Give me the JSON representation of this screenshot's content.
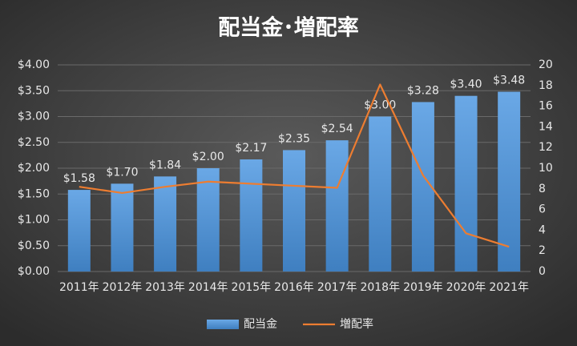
{
  "chart_data": {
    "type": "bar",
    "title": "配当金･増配率",
    "categories": [
      "2011年",
      "2012年",
      "2013年",
      "2014年",
      "2015年",
      "2016年",
      "2017年",
      "2018年",
      "2019年",
      "2020年",
      "2021年"
    ],
    "series": [
      {
        "name": "配当金",
        "type": "bar",
        "color": "#5b9bd5",
        "values": [
          1.58,
          1.7,
          1.84,
          2.0,
          2.17,
          2.35,
          2.54,
          3.0,
          3.28,
          3.4,
          3.48
        ],
        "value_labels": [
          "$1.58",
          "$1.70",
          "$1.84",
          "$2.00",
          "$2.17",
          "$2.35",
          "$2.54",
          "$3.00",
          "$3.28",
          "$3.40",
          "$3.48"
        ]
      },
      {
        "name": "増配率",
        "type": "line",
        "axis": "y2",
        "color": "#ed7d31",
        "values": [
          8.2,
          7.6,
          8.2,
          8.7,
          8.5,
          8.3,
          8.1,
          18.1,
          9.3,
          3.7,
          2.4
        ]
      }
    ],
    "ylim": [
      0,
      4
    ],
    "yticks": [
      {
        "value": 0,
        "label": "$0.00"
      },
      {
        "value": 0.5,
        "label": "$0.50"
      },
      {
        "value": 1,
        "label": "$1.00"
      },
      {
        "value": 1.5,
        "label": "$1.50"
      },
      {
        "value": 2,
        "label": "$2.00"
      },
      {
        "value": 2.5,
        "label": "$2.50"
      },
      {
        "value": 3,
        "label": "$3.00"
      },
      {
        "value": 3.5,
        "label": "$3.50"
      },
      {
        "value": 4,
        "label": "$4.00"
      }
    ],
    "y2lim": [
      0,
      20
    ],
    "y2ticks": [
      0,
      2,
      4,
      6,
      8,
      10,
      12,
      14,
      16,
      18,
      20
    ],
    "grid": true,
    "legend": "bottom"
  }
}
